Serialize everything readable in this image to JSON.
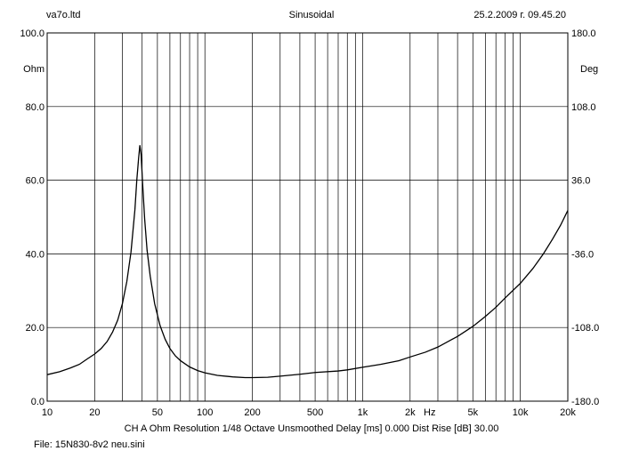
{
  "header": {
    "left": "va7o.ltd",
    "center": "Sinusoidal",
    "right": "25.2.2009 г. 09.45.20"
  },
  "footer": {
    "settings": "CH A   Ohm   Resolution 1/48 Octave   Unsmoothed   Delay [ms] 0.000   Dist Rise [dB] 30.00",
    "file": "File: 15N830-8v2 neu.sini"
  },
  "chart_data": {
    "type": "line",
    "x_scale": "log",
    "xlim": [
      10,
      20000
    ],
    "ylim": [
      0,
      100
    ],
    "y2lim": [
      -180,
      180
    ],
    "ylabel": "Ohm",
    "y2label": "Deg",
    "xunit": "Hz",
    "grid": true,
    "yticks": [
      "0.0",
      "20.0",
      "40.0",
      "60.0",
      "80.0",
      "100.0"
    ],
    "y2ticks": [
      "-180.0",
      "-108.0",
      "-36.0",
      "36.0",
      "108.0",
      "180.0"
    ],
    "xticks": [
      {
        "value": 10,
        "label": "10"
      },
      {
        "value": 20,
        "label": "20"
      },
      {
        "value": 50,
        "label": "50"
      },
      {
        "value": 100,
        "label": "100"
      },
      {
        "value": 200,
        "label": "200"
      },
      {
        "value": 500,
        "label": "500"
      },
      {
        "value": 1000,
        "label": "1k"
      },
      {
        "value": 2000,
        "label": "2k"
      },
      {
        "value": 5000,
        "label": "5k"
      },
      {
        "value": 10000,
        "label": "10k"
      },
      {
        "value": 20000,
        "label": "20k"
      }
    ],
    "series": [
      {
        "values": [
          [
            10,
            7.2
          ],
          [
            12,
            8.0
          ],
          [
            14,
            9.0
          ],
          [
            16,
            10.0
          ],
          [
            18,
            11.5
          ],
          [
            20,
            12.8
          ],
          [
            22,
            14.3
          ],
          [
            24,
            16.2
          ],
          [
            26,
            18.8
          ],
          [
            28,
            22.0
          ],
          [
            30,
            26.5
          ],
          [
            32,
            32.5
          ],
          [
            34,
            40.5
          ],
          [
            36,
            52.0
          ],
          [
            37,
            60.0
          ],
          [
            38,
            66.0
          ],
          [
            38.7,
            69.5
          ],
          [
            39.4,
            67.0
          ],
          [
            40.3,
            59.0
          ],
          [
            41.5,
            49.5
          ],
          [
            43,
            41.0
          ],
          [
            45,
            34.0
          ],
          [
            48,
            26.5
          ],
          [
            52,
            20.5
          ],
          [
            56,
            16.8
          ],
          [
            60,
            14.3
          ],
          [
            65,
            12.3
          ],
          [
            70,
            11.0
          ],
          [
            80,
            9.3
          ],
          [
            90,
            8.3
          ],
          [
            100,
            7.7
          ],
          [
            120,
            7.0
          ],
          [
            150,
            6.6
          ],
          [
            180,
            6.4
          ],
          [
            200,
            6.4
          ],
          [
            250,
            6.5
          ],
          [
            300,
            6.8
          ],
          [
            400,
            7.3
          ],
          [
            500,
            7.8
          ],
          [
            700,
            8.2
          ],
          [
            800,
            8.5
          ],
          [
            1000,
            9.2
          ],
          [
            1300,
            10.0
          ],
          [
            1700,
            11.0
          ],
          [
            2000,
            12.0
          ],
          [
            2500,
            13.3
          ],
          [
            3000,
            14.7
          ],
          [
            4000,
            17.6
          ],
          [
            5000,
            20.3
          ],
          [
            6000,
            23.0
          ],
          [
            7000,
            25.5
          ],
          [
            8000,
            28.0
          ],
          [
            10000,
            32.0
          ],
          [
            12000,
            36.0
          ],
          [
            14000,
            40.0
          ],
          [
            16000,
            44.0
          ],
          [
            18000,
            47.8
          ],
          [
            20000,
            51.8
          ]
        ]
      }
    ]
  }
}
